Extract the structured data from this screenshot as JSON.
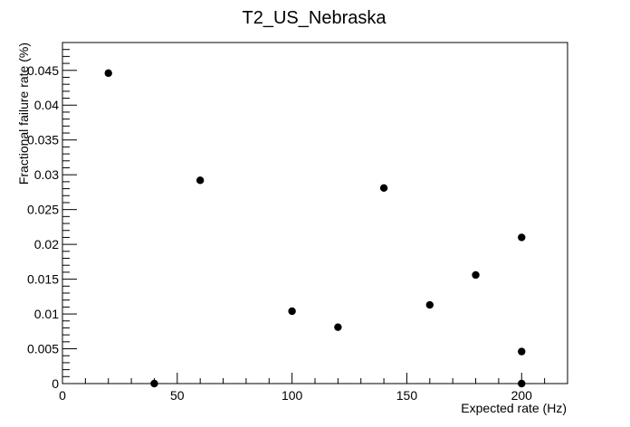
{
  "chart_data": {
    "type": "scatter",
    "title": "T2_US_Nebraska",
    "xlabel": "Expected rate (Hz)",
    "ylabel": "Fractional failure rate (%)",
    "xlim": [
      0,
      220
    ],
    "ylim": [
      0,
      0.049
    ],
    "xticks": [
      0,
      50,
      100,
      150,
      200
    ],
    "xtick_labels": [
      "0",
      "50",
      "100",
      "150",
      "200"
    ],
    "yticks": [
      0,
      0.005,
      0.01,
      0.015,
      0.02,
      0.025,
      0.03,
      0.035,
      0.04,
      0.045
    ],
    "ytick_labels": [
      "0",
      "0.005",
      "0.01",
      "0.015",
      "0.02",
      "0.025",
      "0.03",
      "0.035",
      "0.04",
      "0.045"
    ],
    "grid": false,
    "marker_color": "#000000",
    "points": [
      {
        "x": 20,
        "y": 0.0446
      },
      {
        "x": 40,
        "y": 0.0
      },
      {
        "x": 60,
        "y": 0.0292
      },
      {
        "x": 100,
        "y": 0.0104
      },
      {
        "x": 120,
        "y": 0.0081
      },
      {
        "x": 140,
        "y": 0.0281
      },
      {
        "x": 160,
        "y": 0.0113
      },
      {
        "x": 180,
        "y": 0.0156
      },
      {
        "x": 200,
        "y": 0.021
      },
      {
        "x": 200,
        "y": 0.0046
      },
      {
        "x": 200,
        "y": 0.0
      }
    ]
  }
}
